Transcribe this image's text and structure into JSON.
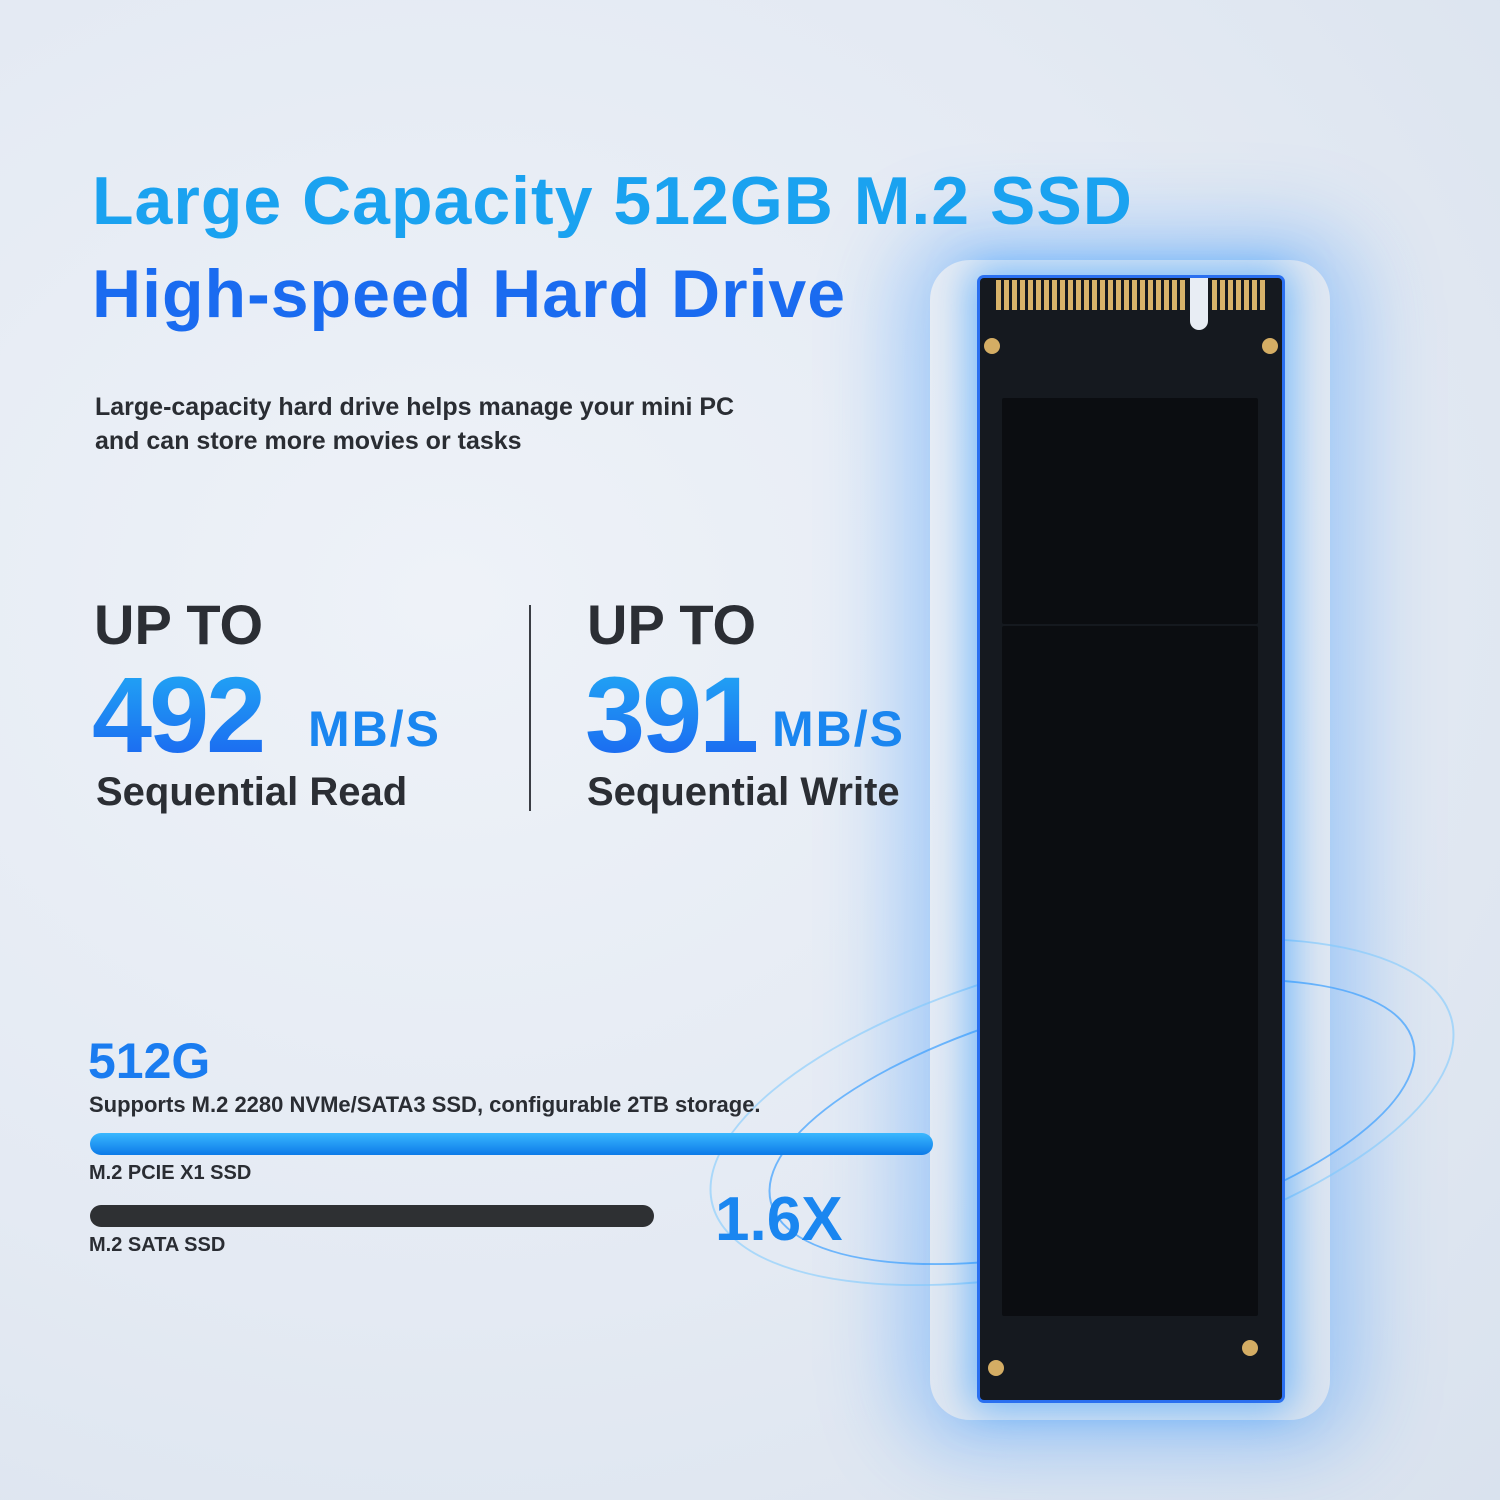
{
  "headline": {
    "line1": "Large Capacity 512GB M.2 SSD",
    "line2": "High-speed Hard Drive"
  },
  "subtitle": {
    "line1": "Large-capacity hard drive helps manage your mini PC",
    "line2": "and can store more movies or tasks"
  },
  "specs": [
    {
      "prefix": "UP TO",
      "value": "492",
      "unit": "MB/S",
      "label": "Sequential Read"
    },
    {
      "prefix": "UP TO",
      "value": "391",
      "unit": "MB/S",
      "label": "Sequential Write"
    }
  ],
  "comparison": {
    "capacity": "512G",
    "description": "Supports M.2 2280 NVMe/SATA3 SSD, configurable 2TB storage.",
    "bars": [
      {
        "label": "M.2 PCIE X1 SSD",
        "relative": 1.6,
        "color": "#1a8cf0"
      },
      {
        "label": "M.2 SATA SSD",
        "relative": 1.0,
        "color": "#2e3033"
      }
    ],
    "multiplier": "1.6X"
  },
  "colors": {
    "accent_light": "#1aa2f0",
    "accent": "#1a6bf0",
    "text": "#2b2e34"
  },
  "product_image": "m2-ssd-illustration"
}
